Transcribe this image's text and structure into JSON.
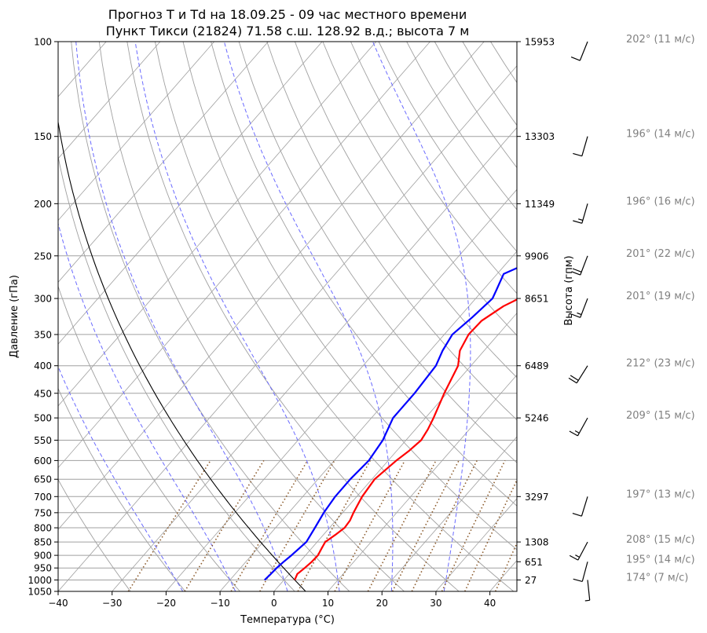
{
  "chart_data": {
    "type": "line",
    "title_line1": "Прогноз T и Td на 18.09.25 - 09 час местного времени",
    "title_line2": "Пункт Тикси (21824) 71.58 с.ш. 128.92 в.д.; высота 7 м",
    "xlabel": "Температура (°C)",
    "ylabel": "Давление (гПа)",
    "y2label": "Высота (гпм)",
    "xlim": [
      -40,
      45
    ],
    "ylim": [
      1050,
      100
    ],
    "y_scale": "log",
    "x_ticks": [
      "−40",
      "−30",
      "−20",
      "−10",
      "0",
      "10",
      "20",
      "30",
      "40"
    ],
    "x_tick_values": [
      -40,
      -30,
      -20,
      -10,
      0,
      10,
      20,
      30,
      40
    ],
    "pressure_ticks": [
      1050,
      1000,
      950,
      900,
      850,
      800,
      750,
      700,
      650,
      600,
      550,
      500,
      450,
      400,
      350,
      300,
      250,
      200,
      150,
      100
    ],
    "height_ticks": [
      {
        "p": 1000,
        "label": "27"
      },
      {
        "p": 925,
        "label": "651"
      },
      {
        "p": 850,
        "label": "1308"
      },
      {
        "p": 700,
        "label": "3297"
      },
      {
        "p": 500,
        "label": "5246"
      },
      {
        "p": 400,
        "label": "6489"
      },
      {
        "p": 300,
        "label": "8651"
      },
      {
        "p": 250,
        "label": "9906"
      },
      {
        "p": 200,
        "label": "11349"
      },
      {
        "p": 150,
        "label": "13303"
      },
      {
        "p": 100,
        "label": "15953"
      }
    ],
    "grid": true,
    "series": [
      {
        "role": "temperature",
        "color": "#ff0000",
        "points": [
          [
            1000,
            2.0
          ],
          [
            975,
            1.5
          ],
          [
            950,
            1.9
          ],
          [
            925,
            2.2
          ],
          [
            900,
            2.3
          ],
          [
            875,
            1.9
          ],
          [
            850,
            1.5
          ],
          [
            825,
            2.2
          ],
          [
            800,
            2.8
          ],
          [
            775,
            2.6
          ],
          [
            750,
            2.0
          ],
          [
            725,
            1.5
          ],
          [
            700,
            1.0
          ],
          [
            650,
            0.5
          ],
          [
            600,
            1.5
          ],
          [
            575,
            2.3
          ],
          [
            550,
            2.8
          ],
          [
            525,
            2.3
          ],
          [
            500,
            1.5
          ],
          [
            450,
            -0.5
          ],
          [
            400,
            -2.4
          ],
          [
            375,
            -4.5
          ],
          [
            350,
            -5.5
          ],
          [
            330,
            -5.3
          ],
          [
            310,
            -3.6
          ],
          [
            300,
            -2.0
          ],
          [
            290,
            0.6
          ],
          [
            280,
            3.5
          ],
          [
            270,
            7.9
          ],
          [
            260,
            12.8
          ],
          [
            250,
            15.5
          ],
          [
            240,
            19.0
          ],
          [
            230,
            21.8
          ],
          [
            220,
            23.0
          ],
          [
            210,
            25.1
          ],
          [
            200,
            27.6
          ],
          [
            190,
            29.8
          ],
          [
            180,
            30.9
          ],
          [
            170,
            32.0
          ],
          [
            160,
            34.1
          ],
          [
            150,
            36.0
          ],
          [
            140,
            38.4
          ],
          [
            130,
            40.0
          ],
          [
            120,
            42.9
          ],
          [
            110,
            45.6
          ],
          [
            100,
            49.0
          ]
        ]
      },
      {
        "role": "dewpoint",
        "color": "#0000ff",
        "points": [
          [
            1000,
            -3.6
          ],
          [
            975,
            -3.4
          ],
          [
            950,
            -3.3
          ],
          [
            925,
            -3.0
          ],
          [
            900,
            -2.6
          ],
          [
            850,
            -2.0
          ],
          [
            800,
            -2.7
          ],
          [
            750,
            -3.5
          ],
          [
            700,
            -4.0
          ],
          [
            650,
            -4.0
          ],
          [
            600,
            -3.6
          ],
          [
            550,
            -4.3
          ],
          [
            500,
            -6.0
          ],
          [
            450,
            -6.0
          ],
          [
            400,
            -6.5
          ],
          [
            375,
            -7.7
          ],
          [
            350,
            -8.5
          ],
          [
            325,
            -7.6
          ],
          [
            300,
            -6.9
          ],
          [
            290,
            -7.5
          ],
          [
            270,
            -8.8
          ],
          [
            260,
            -6.5
          ],
          [
            250,
            -3.5
          ],
          [
            240,
            -0.8
          ],
          [
            230,
            1.2
          ],
          [
            220,
            3.1
          ],
          [
            210,
            5.1
          ],
          [
            200,
            7.5
          ],
          [
            190,
            9.4
          ],
          [
            180,
            10.9
          ],
          [
            170,
            12.4
          ],
          [
            160,
            14.5
          ],
          [
            150,
            16.5
          ],
          [
            140,
            18.7
          ],
          [
            130,
            20.8
          ],
          [
            120,
            22.9
          ],
          [
            110,
            25.0
          ],
          [
            100,
            27.1
          ]
        ]
      }
    ],
    "wind": [
      {
        "p": 100,
        "label": "202° (11 м/с)",
        "dir": 202,
        "speed": 11
      },
      {
        "p": 150,
        "label": "196° (14 м/с)",
        "dir": 196,
        "speed": 14
      },
      {
        "p": 200,
        "label": "196° (16 м/с)",
        "dir": 196,
        "speed": 16
      },
      {
        "p": 250,
        "label": "201° (22 м/с)",
        "dir": 201,
        "speed": 22
      },
      {
        "p": 300,
        "label": "201° (19 м/с)",
        "dir": 201,
        "speed": 19
      },
      {
        "p": 400,
        "label": "212° (23 м/с)",
        "dir": 212,
        "speed": 23
      },
      {
        "p": 500,
        "label": "209° (15 м/с)",
        "dir": 209,
        "speed": 15
      },
      {
        "p": 700,
        "label": "197° (13 м/с)",
        "dir": 197,
        "speed": 13
      },
      {
        "p": 850,
        "label": "208° (15 м/с)",
        "dir": 208,
        "speed": 15
      },
      {
        "p": 925,
        "label": "195° (14 м/с)",
        "dir": 195,
        "speed": 14
      },
      {
        "p": 1000,
        "label": "174° (7 м/с)",
        "dir": 174,
        "speed": 7
      }
    ],
    "colors": {
      "temperature": "#ff0000",
      "dewpoint": "#0000ff",
      "isobars": "#a0a0a0",
      "dry_adiabats": "#a0a0a0",
      "moist_adiabats": "#6a6aff",
      "mixing_ratio": "#8b5a2b",
      "parcel": "#000000",
      "wind_labels": "#808080"
    }
  }
}
